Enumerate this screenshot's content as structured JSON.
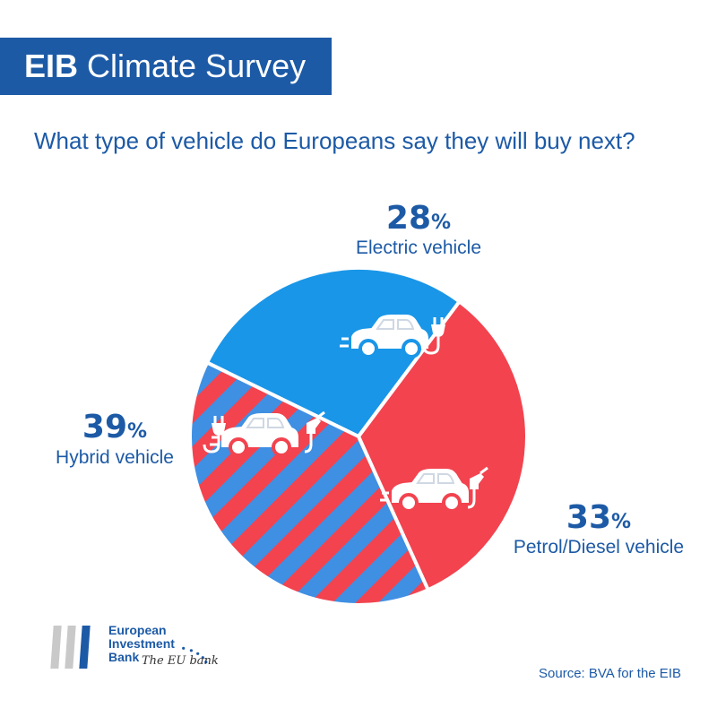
{
  "header": {
    "title_bold": "EIB",
    "title_rest": "Climate Survey"
  },
  "question": "What type of vehicle do Europeans say they will buy next?",
  "colors": {
    "brand_blue": "#1d5aa6",
    "electric": "#1996e8",
    "petrol": "#f2434f",
    "hybrid_stripe_a": "#f2434f",
    "hybrid_stripe_b": "#3f8fe3"
  },
  "chart_data": {
    "type": "pie",
    "title": "What type of vehicle do Europeans say they will buy next?",
    "slices": [
      {
        "label": "Electric vehicle",
        "value": 28,
        "display": "28",
        "unit": "%",
        "color": "#1996e8",
        "pattern": "solid",
        "icons": [
          "car-icon",
          "electric-plug-icon"
        ]
      },
      {
        "label": "Petrol/Diesel vehicle",
        "value": 33,
        "display": "33",
        "unit": "%",
        "color": "#f2434f",
        "pattern": "solid",
        "icons": [
          "car-icon",
          "fuel-nozzle-icon"
        ]
      },
      {
        "label": "Hybrid vehicle",
        "value": 39,
        "display": "39",
        "unit": "%",
        "color": "#f2434f",
        "pattern": "diagonal-stripes-red-blue",
        "icons": [
          "electric-plug-icon",
          "car-icon",
          "fuel-nozzle-icon"
        ]
      }
    ]
  },
  "logo": {
    "line1": "European",
    "line2": "Investment",
    "line3": "Bank",
    "tagline": "The EU bank"
  },
  "source": "Source: BVA for the EIB"
}
